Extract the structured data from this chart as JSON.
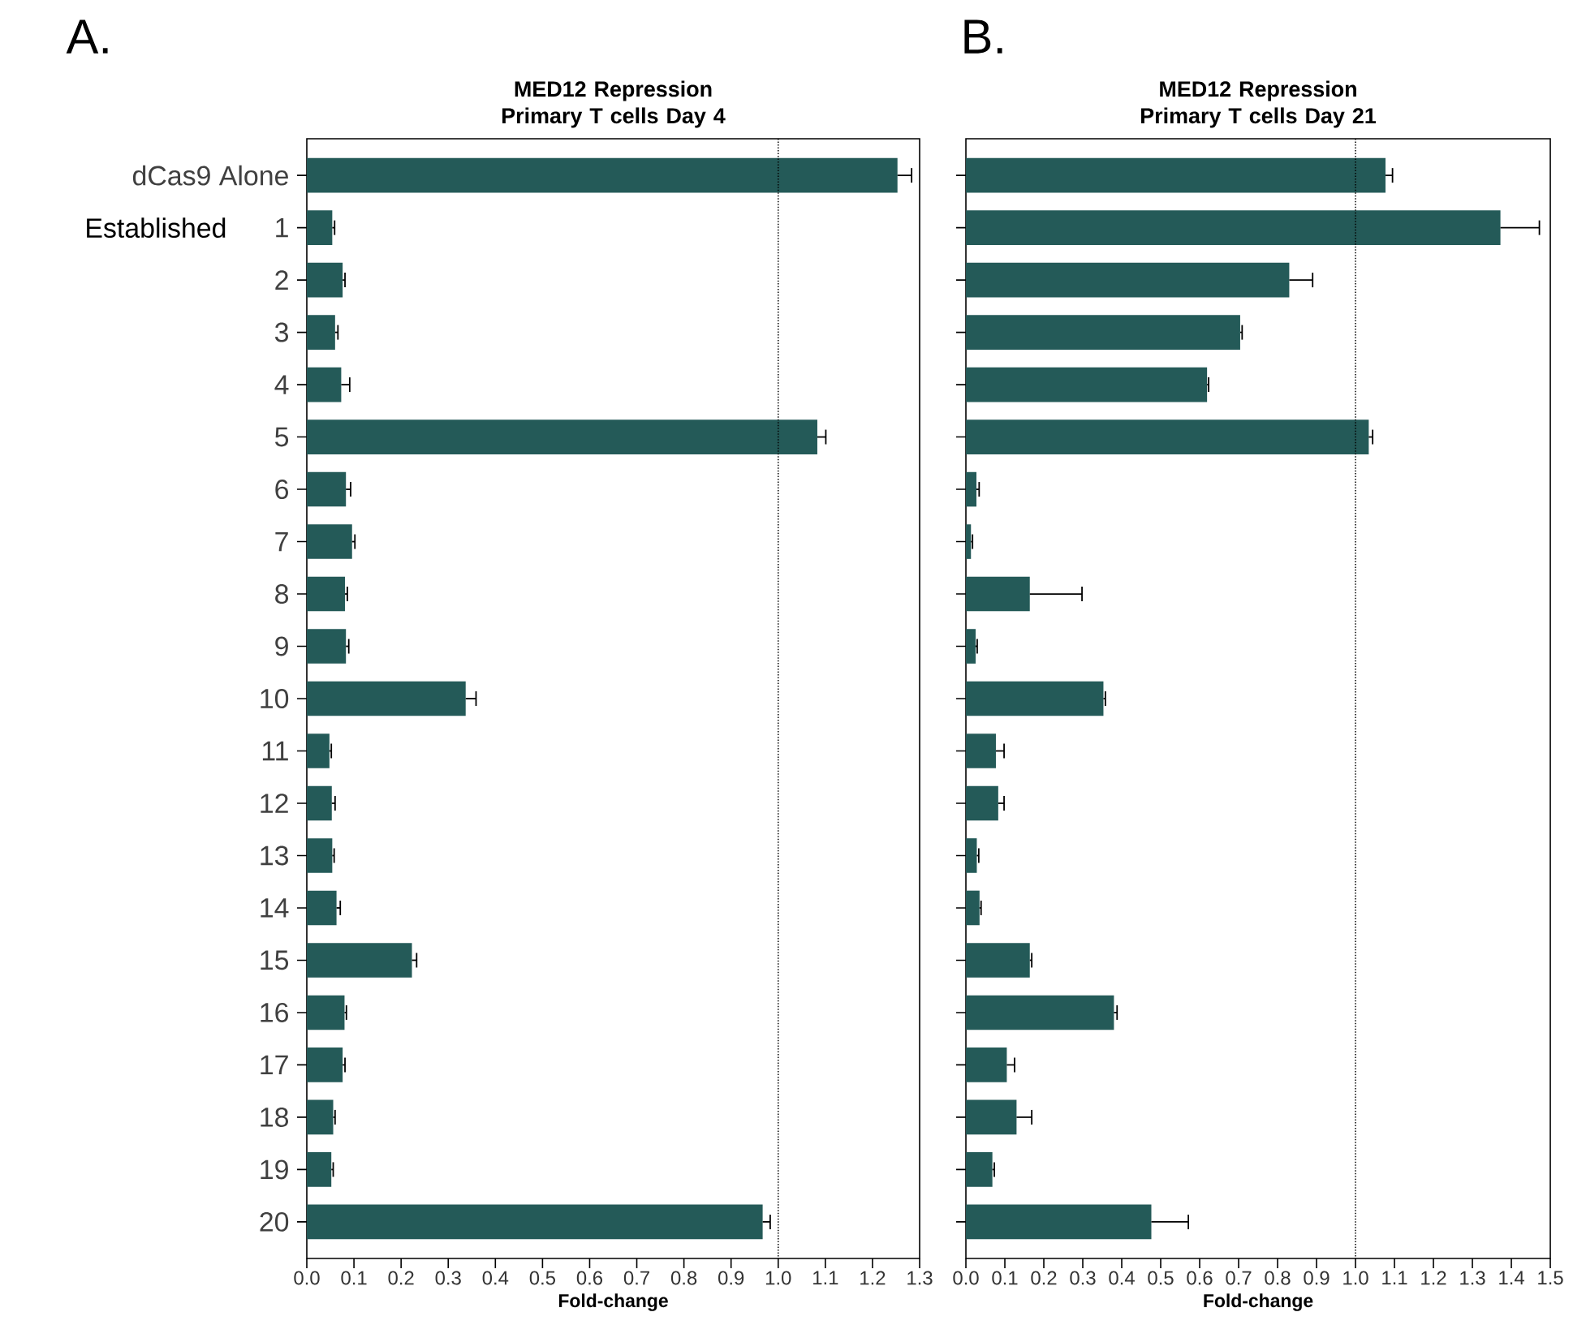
{
  "chart_data": [
    {
      "type": "bar",
      "orientation": "horizontal",
      "title": "MED12 Repression Primary T cells Day 4",
      "xlabel": "Fold-change",
      "categories": [
        "dCas9 Alone",
        "1",
        "2",
        "3",
        "4",
        "5",
        "6",
        "7",
        "8",
        "9",
        "10",
        "11",
        "12",
        "13",
        "14",
        "15",
        "16",
        "17",
        "18",
        "19",
        "20"
      ],
      "values": [
        1.253,
        0.054,
        0.076,
        0.06,
        0.073,
        1.083,
        0.083,
        0.096,
        0.081,
        0.083,
        0.337,
        0.048,
        0.053,
        0.054,
        0.063,
        0.223,
        0.08,
        0.076,
        0.056,
        0.052,
        0.967
      ],
      "errors": [
        0.03,
        0.005,
        0.005,
        0.006,
        0.018,
        0.018,
        0.01,
        0.006,
        0.005,
        0.006,
        0.022,
        0.004,
        0.007,
        0.004,
        0.008,
        0.01,
        0.004,
        0.005,
        0.004,
        0.004,
        0.016
      ],
      "color": "#245a58",
      "xlim": [
        0,
        1.3
      ],
      "xticks": [
        {
          "value": 0,
          "label": "0.0"
        },
        {
          "value": 0.1,
          "label": "0.1"
        },
        {
          "value": 0.2,
          "label": "0.2"
        },
        {
          "value": 0.3,
          "label": "0.3"
        },
        {
          "value": 0.4,
          "label": "0.4"
        },
        {
          "value": 0.5,
          "label": "0.5"
        },
        {
          "value": 0.6,
          "label": "0.6"
        },
        {
          "value": 0.7,
          "label": "0.7"
        },
        {
          "value": 0.8,
          "label": "0.8"
        },
        {
          "value": 0.9,
          "label": "0.9"
        },
        {
          "value": 1,
          "label": "1.0"
        },
        {
          "value": 1.1,
          "label": "1.1"
        },
        {
          "value": 1.2,
          "label": "1.2"
        },
        {
          "value": 1.3,
          "label": "1.3"
        }
      ],
      "ref_lines": [
        {
          "axis": "x",
          "value": 1,
          "line_style": "dotted"
        }
      ],
      "annotations": [
        "A.",
        "Established"
      ]
    },
    {
      "type": "bar",
      "orientation": "horizontal",
      "title": "MED12 Repression Primary T cells Day 21",
      "xlabel": "Fold-change",
      "categories": [
        null,
        null,
        null,
        null,
        null,
        null,
        null,
        null,
        null,
        null,
        null,
        null,
        null,
        null,
        null,
        null,
        null,
        null,
        null,
        null,
        null
      ],
      "values": [
        1.077,
        1.372,
        0.83,
        0.704,
        0.619,
        1.034,
        0.027,
        0.013,
        0.164,
        0.025,
        0.353,
        0.077,
        0.083,
        0.028,
        0.035,
        0.164,
        0.38,
        0.105,
        0.13,
        0.068,
        0.476
      ],
      "errors": [
        0.018,
        0.1,
        0.06,
        0.005,
        0.004,
        0.01,
        0.007,
        0.004,
        0.134,
        0.004,
        0.005,
        0.021,
        0.015,
        0.005,
        0.004,
        0.005,
        0.008,
        0.02,
        0.039,
        0.005,
        0.095
      ],
      "color": "#245a58",
      "xlim": [
        0,
        1.5
      ],
      "xticks": [
        {
          "value": 0,
          "label": "0.0"
        },
        {
          "value": 0.1,
          "label": "0.1"
        },
        {
          "value": 0.2,
          "label": "0.2"
        },
        {
          "value": 0.3,
          "label": "0.3"
        },
        {
          "value": 0.4,
          "label": "0.4"
        },
        {
          "value": 0.5,
          "label": "0.5"
        },
        {
          "value": 0.6,
          "label": "0.6"
        },
        {
          "value": 0.7,
          "label": "0.7"
        },
        {
          "value": 0.8,
          "label": "0.8"
        },
        {
          "value": 0.9,
          "label": "0.9"
        },
        {
          "value": 1,
          "label": "1.0"
        },
        {
          "value": 1.1,
          "label": "1.1"
        },
        {
          "value": 1.2,
          "label": "1.2"
        },
        {
          "value": 1.3,
          "label": "1.3"
        },
        {
          "value": 1.4,
          "label": "1.4"
        },
        {
          "value": 1.5,
          "label": "1.5"
        }
      ],
      "ref_lines": [
        {
          "axis": "x",
          "value": 1,
          "line_style": "dotted"
        }
      ],
      "tick_labels": "x",
      "annotations": [
        "B."
      ]
    }
  ]
}
